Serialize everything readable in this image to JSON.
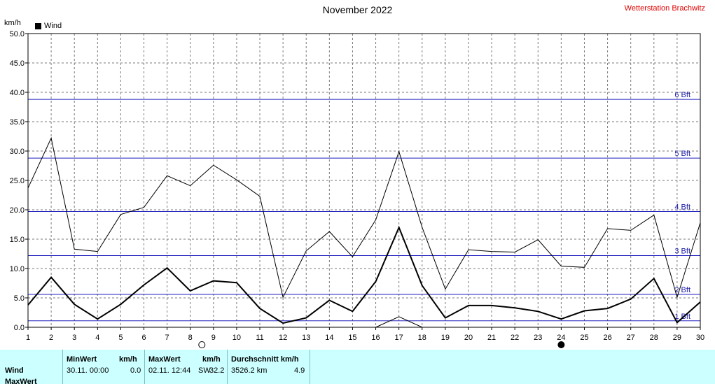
{
  "header": {
    "title": "November 2022",
    "station": "Wetterstation Brachwitz",
    "unit": "km/h",
    "legend_label": "Wind"
  },
  "colors": {
    "bft_line": "#2020c0",
    "bft_label": "#1a1aa6",
    "grid": "#7a7a7a",
    "series": "#000000",
    "stats_bg": "#ccffff"
  },
  "moon_phases": [
    {
      "day": 8.5,
      "phase": "full-moon"
    },
    {
      "day": 24,
      "phase": "new-moon"
    }
  ],
  "chart_data": {
    "type": "line",
    "title": "November 2022",
    "ylabel": "km/h",
    "xlim": [
      1,
      30
    ],
    "ylim": [
      0,
      50
    ],
    "x_ticks": [
      1,
      2,
      3,
      4,
      5,
      6,
      7,
      8,
      9,
      10,
      11,
      12,
      13,
      14,
      15,
      16,
      17,
      18,
      19,
      20,
      21,
      22,
      23,
      24,
      25,
      26,
      27,
      28,
      29,
      30
    ],
    "y_ticks": [
      "0.0",
      "5.0",
      "10.0",
      "15.0",
      "20.0",
      "25.0",
      "30.0",
      "35.0",
      "40.0",
      "45.0",
      "50.0"
    ],
    "grid": true,
    "series": [
      {
        "name": "Wind",
        "role": "mean",
        "x": [
          1,
          2,
          3,
          4,
          5,
          6,
          7,
          8,
          9,
          10,
          11,
          12,
          13,
          14,
          15,
          16,
          17,
          18,
          19,
          20,
          21,
          22,
          23,
          24,
          25,
          26,
          27,
          28,
          29,
          30
        ],
        "values": [
          3.8,
          8.5,
          3.9,
          1.4,
          3.9,
          7.2,
          10.1,
          6.2,
          7.9,
          7.6,
          3.2,
          0.7,
          1.6,
          4.6,
          2.7,
          7.8,
          17.0,
          7.1,
          1.6,
          3.7,
          3.7,
          3.3,
          2.7,
          1.4,
          2.8,
          3.2,
          4.8,
          8.3,
          0.8,
          4.3
        ]
      },
      {
        "role": "max",
        "x": [
          1,
          2,
          3,
          4,
          5,
          6,
          7,
          8,
          9,
          10,
          11,
          12,
          13,
          14,
          15,
          16,
          17,
          18,
          19,
          20,
          21,
          22,
          23,
          24,
          25,
          26,
          27,
          28,
          29,
          30
        ],
        "values": [
          23.7,
          32.2,
          13.3,
          12.9,
          19.2,
          20.4,
          25.8,
          24.1,
          27.6,
          25.1,
          22.3,
          5.1,
          13.0,
          16.3,
          12.0,
          18.3,
          29.9,
          17.0,
          6.5,
          13.2,
          12.9,
          12.8,
          14.9,
          10.4,
          10.2,
          16.8,
          16.5,
          19.1,
          5.1,
          17.8
        ]
      },
      {
        "role": "min",
        "x": [
          16,
          17,
          18,
          19
        ],
        "values": [
          0.0,
          1.8,
          0.0,
          0.0
        ]
      }
    ],
    "reference_lines": [
      {
        "label": "1 Bft",
        "value": 1.1
      },
      {
        "label": "2 Bft",
        "value": 5.6
      },
      {
        "label": "3 Bft",
        "value": 12.2
      },
      {
        "label": "4 Bft",
        "value": 19.7
      },
      {
        "label": "5 Bft",
        "value": 28.8
      },
      {
        "label": "6 Bft",
        "value": 38.8
      }
    ]
  },
  "stats": {
    "row_label": "Wind",
    "row_label2": "MaxWert",
    "min": {
      "header": "MinWert",
      "unit": "km/h",
      "date": "30.11.  00:00",
      "value": "0.0"
    },
    "max": {
      "header": "MaxWert",
      "unit": "km/h",
      "date": "02.11.  12:44",
      "dir": "SW",
      "value": "32.2"
    },
    "avg": {
      "header": "Durchschnitt km/h",
      "distance": "3526.2 km",
      "value": "4.9"
    }
  }
}
